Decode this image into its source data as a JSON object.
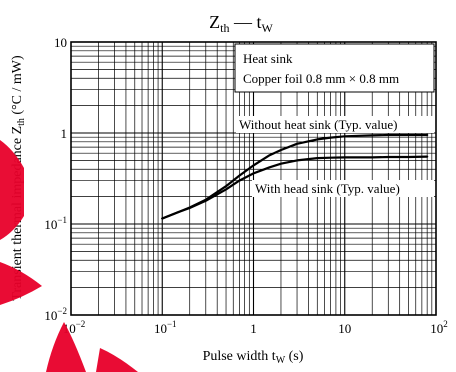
{
  "chart_data": {
    "type": "line",
    "title": "Z_th — t_W",
    "title_main": "Z",
    "title_sub1": "th",
    "title_dash": " — t",
    "title_sub2": "W",
    "xlabel": "Pulse width  t_W  (s)",
    "xlabel_main": "Pulse width  t",
    "xlabel_sub": "W",
    "xlabel_unit": "  (s)",
    "ylabel": "Transient thermal impedance  Z_th  (°C / mW)",
    "ylabel_main": "Transient thermal impedance  Z",
    "ylabel_sub": "th",
    "ylabel_unit": "  (°C / mW)",
    "x_scale": "log",
    "y_scale": "log",
    "xlim": [
      0.01,
      100
    ],
    "ylim": [
      0.01,
      10
    ],
    "grid": true,
    "x_ticks": [
      {
        "value": 0.01,
        "base": "10",
        "exp": "−2"
      },
      {
        "value": 0.1,
        "base": "10",
        "exp": "−1"
      },
      {
        "value": 1,
        "label": "1"
      },
      {
        "value": 10,
        "label": "10"
      },
      {
        "value": 100,
        "base": "10",
        "exp": "2"
      }
    ],
    "y_ticks": [
      {
        "value": 10,
        "label": "10"
      },
      {
        "value": 1,
        "label": "1"
      },
      {
        "value": 0.1,
        "base": "10",
        "exp": "−1"
      },
      {
        "value": 0.01,
        "base": "10",
        "exp": "−2"
      }
    ],
    "legend_box": {
      "line1": "Heat sink",
      "line2": "Copper foil 0.8 mm × 0.8 mm"
    },
    "series": [
      {
        "name": "Without heat sink (Typ. value)",
        "x": [
          0.1,
          0.15,
          0.2,
          0.3,
          0.5,
          0.7,
          1,
          1.5,
          2,
          3,
          5,
          7,
          10,
          20,
          30,
          50,
          80
        ],
        "y": [
          0.115,
          0.135,
          0.152,
          0.185,
          0.26,
          0.34,
          0.44,
          0.57,
          0.65,
          0.76,
          0.85,
          0.89,
          0.92,
          0.94,
          0.95,
          0.95,
          0.95
        ]
      },
      {
        "name": "With head sink (Typ. value)",
        "x": [
          0.1,
          0.15,
          0.2,
          0.3,
          0.5,
          0.7,
          1,
          1.5,
          2,
          3,
          5,
          7,
          10,
          20,
          30,
          50,
          80
        ],
        "y": [
          0.115,
          0.135,
          0.15,
          0.18,
          0.24,
          0.3,
          0.36,
          0.42,
          0.46,
          0.5,
          0.53,
          0.535,
          0.54,
          0.54,
          0.545,
          0.545,
          0.55
        ]
      }
    ]
  }
}
